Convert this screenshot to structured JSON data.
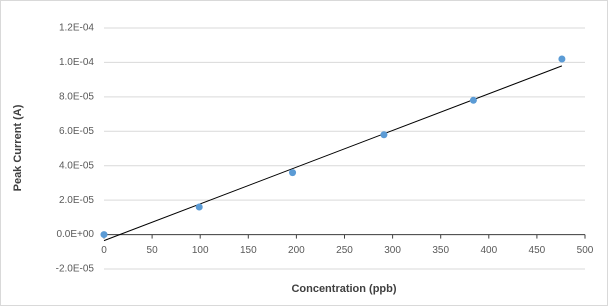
{
  "chart_data": {
    "type": "scatter",
    "x_label": "Concentration (ppb)",
    "y_label": "Peak Current (A)",
    "series": [
      {
        "x": [
          0,
          99,
          196,
          291,
          384,
          476
        ],
        "values": [
          0,
          1.6e-05,
          3.6e-05,
          5.8e-05,
          7.8e-05,
          0.000102
        ],
        "color": "#5b9bd5"
      }
    ],
    "trendline": {
      "x": [
        0,
        476
      ],
      "values": [
        -3.5e-06,
        9.8e-05
      ],
      "color": "#000000"
    },
    "xlim": [
      0,
      500
    ],
    "xticks": [
      0,
      50,
      100,
      150,
      200,
      250,
      300,
      350,
      400,
      450,
      500
    ],
    "ylim": [
      -2e-05,
      0.00012
    ],
    "yticks": [
      {
        "value": -2e-05,
        "label": "-2.0E-05"
      },
      {
        "value": 0,
        "label": "0.0E+00"
      },
      {
        "value": 2e-05,
        "label": "2.0E-05"
      },
      {
        "value": 4e-05,
        "label": "4.0E-05"
      },
      {
        "value": 6e-05,
        "label": "6.0E-05"
      },
      {
        "value": 8e-05,
        "label": "8.0E-05"
      },
      {
        "value": 0.0001,
        "label": "1.0E-04"
      },
      {
        "value": 0.00012,
        "label": "1.2E-04"
      }
    ],
    "grid": true
  }
}
